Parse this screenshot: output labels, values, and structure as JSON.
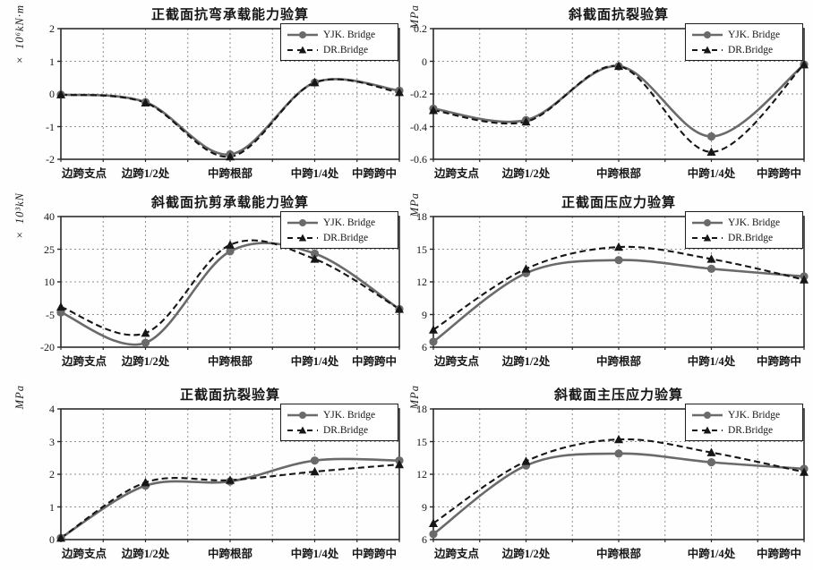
{
  "figure": {
    "legend_labels": [
      "YJK. Bridge",
      "DR.Bridge"
    ],
    "colors": {
      "yjk_line": "#6a6a6a",
      "dr_line": "#161616",
      "grid": "#8f8f8f",
      "border": "#2b2b2b",
      "background": "#fefefe",
      "text": "#151515"
    }
  },
  "chart_data": [
    {
      "type": "line",
      "title": "正截面抗弯承载能力验算",
      "ylabel": "× 10⁶kN·m",
      "ylim": [
        -2,
        2
      ],
      "yticks": [
        2,
        1,
        0,
        -1,
        -2
      ],
      "ytick_labels": [
        "2",
        "1",
        "0",
        "-1",
        "-2"
      ],
      "categories": [
        "边跨支点",
        "边跨1/2处",
        "中跨根部",
        "中跨1/4处",
        "中跨跨中"
      ],
      "legend_position": "top-right",
      "grid": true,
      "series": [
        {
          "name": "YJK. Bridge",
          "values": [
            -0.02,
            -0.25,
            -1.85,
            0.35,
            0.1
          ]
        },
        {
          "name": "DR.Bridge",
          "values": [
            -0.02,
            -0.27,
            -1.92,
            0.35,
            0.05
          ]
        }
      ]
    },
    {
      "type": "line",
      "title": "斜截面抗裂验算",
      "ylabel": "MPa",
      "ylim": [
        -0.6,
        0.2
      ],
      "yticks": [
        0.2,
        0,
        -0.2,
        -0.4,
        -0.6
      ],
      "ytick_labels": [
        "0.2",
        "0",
        "-0.2",
        "-0.4",
        "-0.6"
      ],
      "categories": [
        "边跨支点",
        "边跨1/2处",
        "中跨根部",
        "中跨1/4处",
        "中跨跨中"
      ],
      "legend_position": "top-right",
      "grid": true,
      "series": [
        {
          "name": "YJK. Bridge",
          "values": [
            -0.29,
            -0.36,
            -0.03,
            -0.46,
            -0.02
          ]
        },
        {
          "name": "DR.Bridge",
          "values": [
            -0.3,
            -0.37,
            -0.03,
            -0.555,
            -0.02
          ]
        }
      ]
    },
    {
      "type": "line",
      "title": "斜截面抗剪承载能力验算",
      "ylabel": "× 10³kN",
      "ylim": [
        -20,
        40
      ],
      "yticks": [
        40,
        25,
        10,
        -5,
        -20
      ],
      "ytick_labels": [
        "40",
        "25",
        "10",
        "-5",
        "-20"
      ],
      "categories": [
        "边跨支点",
        "边跨1/2处",
        "中跨根部",
        "中跨1/4处",
        "中跨跨中"
      ],
      "legend_position": "top-right",
      "grid": true,
      "series": [
        {
          "name": "YJK. Bridge",
          "values": [
            -4,
            -18,
            24,
            23,
            -2.5
          ]
        },
        {
          "name": "DR.Bridge",
          "values": [
            -1.5,
            -13.5,
            27,
            20.5,
            -2.5
          ]
        }
      ]
    },
    {
      "type": "line",
      "title": "正截面压应力验算",
      "ylabel": "MPa",
      "ylim": [
        6,
        18
      ],
      "yticks": [
        18,
        15,
        12,
        9,
        6
      ],
      "ytick_labels": [
        "18",
        "15",
        "12",
        "9",
        "6"
      ],
      "categories": [
        "边跨支点",
        "边跨1/2处",
        "中跨根部",
        "中跨1/4处",
        "中跨跨中"
      ],
      "legend_position": "top-right",
      "grid": true,
      "series": [
        {
          "name": "YJK. Bridge",
          "values": [
            6.5,
            12.8,
            14.0,
            13.2,
            12.5
          ]
        },
        {
          "name": "DR.Bridge",
          "values": [
            7.6,
            13.2,
            15.2,
            14.1,
            12.2
          ]
        }
      ]
    },
    {
      "type": "line",
      "title": "正截面抗裂验算",
      "ylabel": "MPa",
      "ylim": [
        0,
        4
      ],
      "yticks": [
        4,
        3,
        2,
        1,
        0
      ],
      "ytick_labels": [
        "4",
        "3",
        "2",
        "1",
        "0"
      ],
      "categories": [
        "边跨支点",
        "边跨1/2处",
        "中跨根部",
        "中跨1/4处",
        "中跨跨中"
      ],
      "legend_position": "top-right",
      "grid": true,
      "series": [
        {
          "name": "YJK. Bridge",
          "values": [
            0.05,
            1.65,
            1.78,
            2.42,
            2.42
          ]
        },
        {
          "name": "DR.Bridge",
          "values": [
            0.05,
            1.75,
            1.82,
            2.08,
            2.3
          ]
        }
      ]
    },
    {
      "type": "line",
      "title": "斜截面主压应力验算",
      "ylabel": "MPa",
      "ylim": [
        6,
        18
      ],
      "yticks": [
        18,
        15,
        12,
        9,
        6
      ],
      "ytick_labels": [
        "18",
        "15",
        "12",
        "9",
        "6"
      ],
      "categories": [
        "边跨支点",
        "边跨1/2处",
        "中跨根部",
        "中跨1/4处",
        "中跨跨中"
      ],
      "legend_position": "top-right",
      "grid": true,
      "series": [
        {
          "name": "YJK. Bridge",
          "values": [
            6.5,
            12.8,
            13.9,
            13.1,
            12.5
          ]
        },
        {
          "name": "DR.Bridge",
          "values": [
            7.5,
            13.2,
            15.2,
            14.0,
            12.2
          ]
        }
      ]
    }
  ]
}
